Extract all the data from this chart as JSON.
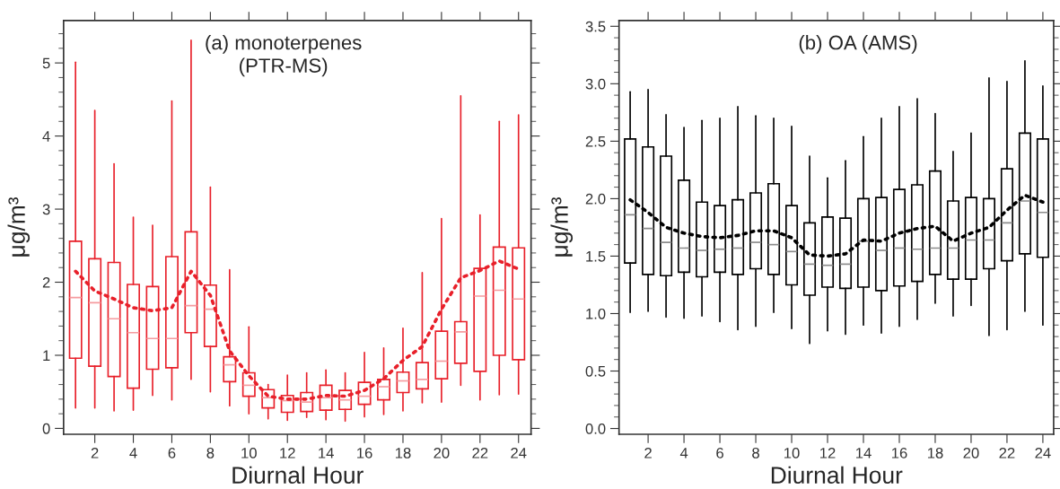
{
  "chart_data": [
    {
      "type": "box",
      "title": "(a) monoterpenes\n(PTR-MS)",
      "xlabel": "Diurnal Hour",
      "ylabel": "μg/m³",
      "categories": [
        null,
        "2",
        null,
        "4",
        null,
        "6",
        null,
        "8",
        null,
        "10",
        null,
        "12",
        null,
        "14",
        null,
        "16",
        null,
        "18",
        null,
        "20",
        null,
        "22",
        null,
        "24"
      ],
      "ylim": [
        -0.08,
        5.58
      ],
      "yticks": [
        0,
        1,
        2,
        3,
        4,
        5
      ],
      "series": [
        {
          "color": "#e8202a",
          "boxes": [
            {
              "low": 0.28,
              "q1": 0.96,
              "median": 1.79,
              "q3": 2.56,
              "high": 5.01
            },
            {
              "low": 0.28,
              "q1": 0.85,
              "median": 1.72,
              "q3": 2.32,
              "high": 4.35
            },
            {
              "low": 0.24,
              "q1": 0.71,
              "median": 1.5,
              "q3": 2.27,
              "high": 3.62
            },
            {
              "low": 0.25,
              "q1": 0.55,
              "median": 1.31,
              "q3": 1.97,
              "high": 2.89
            },
            {
              "low": 0.45,
              "q1": 0.81,
              "median": 1.23,
              "q3": 1.94,
              "high": 2.78
            },
            {
              "low": 0.39,
              "q1": 0.83,
              "median": 1.23,
              "q3": 2.35,
              "high": 4.48
            },
            {
              "low": 0.67,
              "q1": 1.31,
              "median": 1.68,
              "q3": 2.69,
              "high": 5.31
            },
            {
              "low": 0.5,
              "q1": 1.12,
              "median": 1.63,
              "q3": 1.96,
              "high": 3.3
            },
            {
              "low": 0.31,
              "q1": 0.64,
              "median": 0.87,
              "q3": 0.98,
              "high": 2.17
            },
            {
              "low": 0.2,
              "q1": 0.44,
              "median": 0.59,
              "q3": 0.76,
              "high": 1.39
            },
            {
              "low": 0.13,
              "q1": 0.28,
              "median": 0.42,
              "q3": 0.53,
              "high": 0.6
            },
            {
              "low": 0.11,
              "q1": 0.22,
              "median": 0.38,
              "q3": 0.45,
              "high": 0.73
            },
            {
              "low": 0.15,
              "q1": 0.23,
              "median": 0.36,
              "q3": 0.49,
              "high": 0.76
            },
            {
              "low": 0.12,
              "q1": 0.25,
              "median": 0.42,
              "q3": 0.59,
              "high": 0.8
            },
            {
              "low": 0.1,
              "q1": 0.26,
              "median": 0.39,
              "q3": 0.52,
              "high": 0.76
            },
            {
              "low": 0.16,
              "q1": 0.33,
              "median": 0.44,
              "q3": 0.63,
              "high": 1.04
            },
            {
              "low": 0.19,
              "q1": 0.39,
              "median": 0.57,
              "q3": 0.67,
              "high": 1.1
            },
            {
              "low": 0.24,
              "q1": 0.49,
              "median": 0.65,
              "q3": 0.77,
              "high": 1.37
            },
            {
              "low": 0.35,
              "q1": 0.54,
              "median": 0.67,
              "q3": 0.9,
              "high": 2.13
            },
            {
              "low": 0.36,
              "q1": 0.68,
              "median": 0.92,
              "q3": 1.33,
              "high": 2.87
            },
            {
              "low": 0.59,
              "q1": 0.89,
              "median": 1.32,
              "q3": 1.46,
              "high": 4.55
            },
            {
              "low": 0.39,
              "q1": 0.78,
              "median": 1.81,
              "q3": 2.19,
              "high": 2.92
            },
            {
              "low": 0.46,
              "q1": 1.0,
              "median": 1.89,
              "q3": 2.48,
              "high": 4.2
            },
            {
              "low": 0.47,
              "q1": 0.94,
              "median": 1.77,
              "q3": 2.47,
              "high": 4.29
            }
          ]
        },
        {
          "type": "line",
          "color": "#e8202a",
          "line_style": "dotted",
          "values": [
            2.15,
            1.88,
            1.77,
            1.65,
            1.61,
            1.65,
            2.15,
            1.82,
            1.06,
            0.72,
            0.44,
            0.4,
            0.4,
            0.45,
            0.44,
            0.52,
            0.68,
            0.93,
            1.12,
            1.63,
            2.06,
            2.16,
            2.29,
            2.18
          ]
        }
      ]
    },
    {
      "type": "box",
      "title": "(b) OA (AMS)",
      "xlabel": "Diurnal Hour",
      "ylabel": "μg/m³",
      "categories": [
        null,
        "2",
        null,
        "4",
        null,
        "6",
        null,
        "8",
        null,
        "10",
        null,
        "12",
        null,
        "14",
        null,
        "16",
        null,
        "18",
        null,
        "20",
        null,
        "22",
        null,
        "24"
      ],
      "ylim": [
        -0.05,
        3.55
      ],
      "yticks": [
        {
          "value": 0,
          "label": "0.0"
        },
        {
          "value": 0.5,
          "label": "0.5"
        },
        {
          "value": 1,
          "label": "1.0"
        },
        {
          "value": 1.5,
          "label": "1.5"
        },
        {
          "value": 2,
          "label": "2.0"
        },
        {
          "value": 2.5,
          "label": "2.5"
        },
        {
          "value": 3,
          "label": "3.0"
        },
        {
          "value": 3.5,
          "label": "3.5"
        }
      ],
      "series": [
        {
          "color": "#000000",
          "boxes": [
            {
              "low": 1.01,
              "q1": 1.44,
              "median": 1.86,
              "q3": 2.52,
              "high": 2.93
            },
            {
              "low": 1.02,
              "q1": 1.34,
              "median": 1.74,
              "q3": 2.45,
              "high": 2.95
            },
            {
              "low": 0.97,
              "q1": 1.33,
              "median": 1.62,
              "q3": 2.37,
              "high": 2.73
            },
            {
              "low": 0.96,
              "q1": 1.36,
              "median": 1.57,
              "q3": 2.16,
              "high": 2.62
            },
            {
              "low": 0.98,
              "q1": 1.32,
              "median": 1.55,
              "q3": 1.97,
              "high": 2.68
            },
            {
              "low": 0.93,
              "q1": 1.36,
              "median": 1.56,
              "q3": 1.94,
              "high": 2.7
            },
            {
              "low": 0.86,
              "q1": 1.34,
              "median": 1.57,
              "q3": 1.99,
              "high": 2.8
            },
            {
              "low": 0.89,
              "q1": 1.39,
              "median": 1.62,
              "q3": 2.05,
              "high": 2.72
            },
            {
              "low": 1.01,
              "q1": 1.34,
              "median": 1.6,
              "q3": 2.13,
              "high": 2.7
            },
            {
              "low": 0.87,
              "q1": 1.25,
              "median": 1.54,
              "q3": 1.94,
              "high": 2.63
            },
            {
              "low": 0.74,
              "q1": 1.16,
              "median": 1.43,
              "q3": 1.79,
              "high": 2.37
            },
            {
              "low": 0.85,
              "q1": 1.23,
              "median": 1.42,
              "q3": 1.84,
              "high": 2.18
            },
            {
              "low": 0.82,
              "q1": 1.22,
              "median": 1.43,
              "q3": 1.83,
              "high": 2.33
            },
            {
              "low": 0.9,
              "q1": 1.23,
              "median": 1.63,
              "q3": 2.0,
              "high": 2.54
            },
            {
              "low": 0.83,
              "q1": 1.2,
              "median": 1.55,
              "q3": 2.01,
              "high": 2.7
            },
            {
              "low": 0.89,
              "q1": 1.24,
              "median": 1.57,
              "q3": 2.08,
              "high": 2.8
            },
            {
              "low": 0.95,
              "q1": 1.28,
              "median": 1.56,
              "q3": 2.12,
              "high": 2.87
            },
            {
              "low": 1.09,
              "q1": 1.34,
              "median": 1.57,
              "q3": 2.24,
              "high": 2.74
            },
            {
              "low": 0.98,
              "q1": 1.3,
              "median": 1.57,
              "q3": 1.98,
              "high": 2.41
            },
            {
              "low": 1.07,
              "q1": 1.3,
              "median": 1.64,
              "q3": 2.01,
              "high": 2.57
            },
            {
              "low": 0.81,
              "q1": 1.39,
              "median": 1.64,
              "q3": 2.0,
              "high": 3.05
            },
            {
              "low": 0.86,
              "q1": 1.46,
              "median": 1.79,
              "q3": 2.26,
              "high": 3.02
            },
            {
              "low": 1.02,
              "q1": 1.52,
              "median": 1.98,
              "q3": 2.57,
              "high": 3.2
            },
            {
              "low": 0.9,
              "q1": 1.49,
              "median": 1.88,
              "q3": 2.52,
              "high": 2.98
            }
          ]
        },
        {
          "type": "line",
          "color": "#000000",
          "line_style": "dotted",
          "values": [
            1.99,
            1.88,
            1.75,
            1.7,
            1.67,
            1.66,
            1.68,
            1.72,
            1.72,
            1.66,
            1.51,
            1.5,
            1.52,
            1.64,
            1.63,
            1.7,
            1.74,
            1.76,
            1.63,
            1.7,
            1.75,
            1.9,
            2.03,
            1.97
          ]
        }
      ]
    }
  ]
}
